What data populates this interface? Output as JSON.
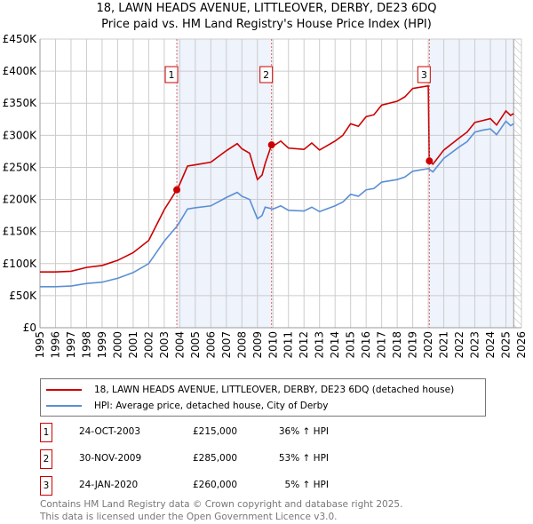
{
  "title": "18, LAWN HEADS AVENUE, LITTLEOVER, DERBY, DE23 6DQ",
  "subtitle": "Price paid vs. HM Land Registry's House Price Index (HPI)",
  "chart_data": {
    "type": "line",
    "title": "18, LAWN HEADS AVENUE, LITTLEOVER, DERBY, DE23 6DQ",
    "ylim": [
      0,
      450000
    ],
    "xlim": [
      1995,
      2026
    ],
    "y_ticks": [
      "£0",
      "£50K",
      "£100K",
      "£150K",
      "£200K",
      "£250K",
      "£300K",
      "£350K",
      "£400K",
      "£450K"
    ],
    "x_ticks": [
      "1995",
      "1996",
      "1997",
      "1998",
      "1999",
      "2000",
      "2001",
      "2002",
      "2003",
      "2004",
      "2005",
      "2006",
      "2007",
      "2008",
      "2009",
      "2010",
      "2011",
      "2012",
      "2013",
      "2014",
      "2015",
      "2016",
      "2017",
      "2018",
      "2019",
      "2020",
      "2021",
      "2022",
      "2023",
      "2024",
      "2025",
      "2026"
    ],
    "shaded_periods": [
      [
        2003.81,
        2009.91
      ],
      [
        2020.07,
        2025.5
      ]
    ],
    "forecast_hatch_from": 2025.5,
    "series": [
      {
        "name": "18, LAWN HEADS AVENUE, LITTLEOVER, DERBY, DE23 6DQ (detached house)",
        "color": "#cc0000",
        "x": [
          1995,
          1996,
          1997,
          1998,
          1999,
          2000,
          2001,
          2002,
          2003,
          2003.81,
          2004,
          2004.5,
          2005,
          2006,
          2007,
          2007.7,
          2008,
          2008.5,
          2009,
          2009.3,
          2009.5,
          2009.91,
          2010,
          2010.5,
          2011,
          2012,
          2012.5,
          2013,
          2014,
          2014.5,
          2015,
          2015.5,
          2016,
          2016.5,
          2017,
          2018,
          2018.5,
          2019,
          2020,
          2020.07,
          2020.3,
          2021,
          2022,
          2022.5,
          2023,
          2023.5,
          2024,
          2024.4,
          2025,
          2025.3,
          2025.5
        ],
        "y": [
          87000,
          87000,
          88000,
          94000,
          97000,
          105000,
          117000,
          136000,
          184000,
          215000,
          224000,
          252000,
          254000,
          258000,
          276000,
          287000,
          279000,
          272000,
          231000,
          238000,
          256000,
          285000,
          283000,
          291000,
          280000,
          278000,
          288000,
          277000,
          291000,
          300000,
          318000,
          314000,
          329000,
          332000,
          347000,
          353000,
          360000,
          373000,
          377000,
          260000,
          255000,
          277000,
          296000,
          305000,
          320000,
          323000,
          326000,
          316000,
          338000,
          331000,
          334000
        ]
      },
      {
        "name": "HPI: Average price, detached house, City of Derby",
        "color": "#5b8fd4",
        "x": [
          1995,
          1996,
          1997,
          1998,
          1999,
          2000,
          2001,
          2002,
          2003,
          2003.81,
          2004,
          2004.5,
          2005,
          2006,
          2007,
          2007.7,
          2008,
          2008.5,
          2009,
          2009.3,
          2009.5,
          2010,
          2010.5,
          2011,
          2012,
          2012.5,
          2013,
          2014,
          2014.5,
          2015,
          2015.5,
          2016,
          2016.5,
          2017,
          2018,
          2018.5,
          2019,
          2020,
          2020.3,
          2021,
          2022,
          2022.5,
          2023,
          2023.5,
          2024,
          2024.4,
          2025,
          2025.3,
          2025.5
        ],
        "y": [
          64000,
          64000,
          65000,
          69000,
          71000,
          77000,
          86000,
          100000,
          135000,
          158000,
          165000,
          185000,
          187000,
          190000,
          203000,
          211000,
          205000,
          200000,
          170000,
          175000,
          188000,
          185000,
          190000,
          183000,
          182000,
          188000,
          181000,
          190000,
          196000,
          208000,
          205000,
          215000,
          217000,
          227000,
          231000,
          235000,
          244000,
          248000,
          243000,
          264000,
          282000,
          290000,
          305000,
          308000,
          310000,
          301000,
          322000,
          315000,
          318000
        ]
      }
    ],
    "sales": [
      {
        "label": "1",
        "x": 2003.81,
        "y": 215000
      },
      {
        "label": "2",
        "x": 2009.91,
        "y": 285000
      },
      {
        "label": "3",
        "x": 2020.07,
        "y": 260000
      }
    ]
  },
  "legend": {
    "property": "18, LAWN HEADS AVENUE, LITTLEOVER, DERBY, DE23 6DQ (detached house)",
    "hpi": "HPI: Average price, detached house, City of Derby"
  },
  "sales_table": [
    {
      "num": "1",
      "date": "24-OCT-2003",
      "price": "£215,000",
      "hpi": "36% ↑ HPI"
    },
    {
      "num": "2",
      "date": "30-NOV-2009",
      "price": "£285,000",
      "hpi": "53% ↑ HPI"
    },
    {
      "num": "3",
      "date": "24-JAN-2020",
      "price": "£260,000",
      "hpi": "5% ↑ HPI"
    }
  ],
  "footer": {
    "line1": "Contains HM Land Registry data © Crown copyright and database right 2025.",
    "line2": "This data is licensed under the Open Government Licence v3.0."
  }
}
